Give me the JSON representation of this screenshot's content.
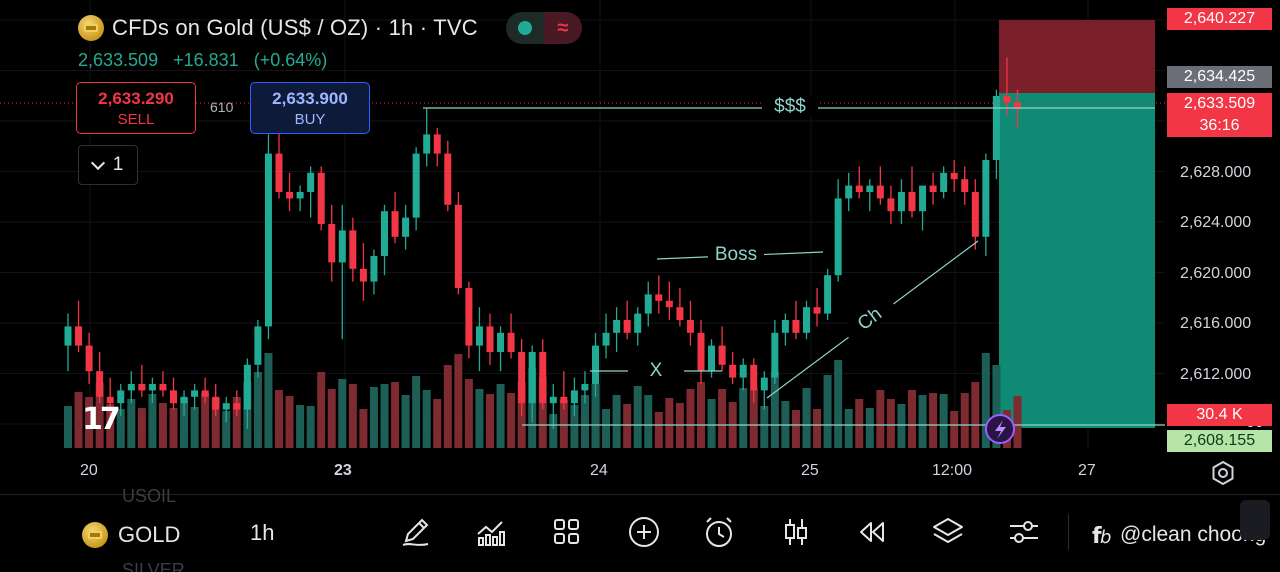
{
  "header": {
    "title": "CFDs on Gold (US$ / OZ) · 1h · TVC",
    "price": "2,633.509",
    "change": "+16.831",
    "change_pct": "(+0.64%)"
  },
  "trade": {
    "sell_price": "2,633.290",
    "sell_label": "SELL",
    "spread": "610",
    "buy_price": "2,633.900",
    "buy_label": "BUY"
  },
  "indicators_toggle": {
    "count": "1"
  },
  "annotations": {
    "liquidity": "$$$",
    "boss": "Boss",
    "x": "X",
    "ch": "Ch"
  },
  "price_axis": {
    "ticks": [
      "2,628.000",
      "2,624.000",
      "2,620.000",
      "2,616.000",
      "2,612.000"
    ],
    "tag_top": "2,640.227",
    "tag_grey": "2,634.425",
    "tag_last": "2,633.509",
    "tag_countdown": "36:16",
    "tag_volume": "30.4 K",
    "tag_bottom": "2,608.155",
    "partial_label": "00"
  },
  "time_axis": [
    "20",
    "23",
    "24",
    "25",
    "12:00",
    "27"
  ],
  "bottom": {
    "symbol": "GOLD",
    "timeframe": "1h",
    "ghost_above": "USOIL",
    "ghost_below": "SILVER",
    "watermark": "@clean choong"
  },
  "colors": {
    "up": "#22ab94",
    "down": "#f23645",
    "vol_up": "#1d5f56",
    "vol_down": "#7d2a30",
    "tp_zone": "#0f8a74",
    "sl_zone": "#7a1f29"
  },
  "chart_data": {
    "type": "candlestick",
    "ylim": [
      2607,
      2642
    ],
    "candles": [
      [
        2615.0,
        2617.5,
        2613.0,
        2616.5
      ],
      [
        2616.5,
        2618.5,
        2614.5,
        2615.0
      ],
      [
        2615.0,
        2616.0,
        2612.0,
        2613.0
      ],
      [
        2613.0,
        2614.5,
        2610.5,
        2611.0
      ],
      [
        2611.0,
        2612.5,
        2609.0,
        2610.5
      ],
      [
        2610.5,
        2612.0,
        2609.5,
        2611.5
      ],
      [
        2611.5,
        2613.0,
        2610.5,
        2612.0
      ],
      [
        2612.0,
        2613.5,
        2611.0,
        2611.5
      ],
      [
        2611.5,
        2612.5,
        2610.5,
        2612.0
      ],
      [
        2612.0,
        2613.0,
        2611.0,
        2611.5
      ],
      [
        2611.5,
        2612.5,
        2610.0,
        2610.5
      ],
      [
        2610.5,
        2611.5,
        2609.5,
        2611.0
      ],
      [
        2611.0,
        2612.0,
        2610.0,
        2611.5
      ],
      [
        2611.5,
        2612.5,
        2610.5,
        2611.0
      ],
      [
        2611.0,
        2612.0,
        2609.5,
        2610.0
      ],
      [
        2610.0,
        2611.0,
        2609.0,
        2610.5
      ],
      [
        2610.5,
        2611.5,
        2609.5,
        2610.0
      ],
      [
        2610.0,
        2614.0,
        2608.5,
        2613.5
      ],
      [
        2613.5,
        2617.0,
        2612.5,
        2616.5
      ],
      [
        2616.5,
        2631.5,
        2615.5,
        2630.0
      ],
      [
        2630.0,
        2632.0,
        2626.5,
        2627.0
      ],
      [
        2627.0,
        2628.5,
        2625.5,
        2626.5
      ],
      [
        2626.5,
        2627.5,
        2625.5,
        2627.0
      ],
      [
        2627.0,
        2629.0,
        2625.0,
        2628.5
      ],
      [
        2628.5,
        2629.0,
        2624.0,
        2624.5
      ],
      [
        2624.5,
        2626.0,
        2620.0,
        2621.5
      ],
      [
        2621.5,
        2626.0,
        2615.5,
        2624.0
      ],
      [
        2624.0,
        2625.0,
        2620.0,
        2621.0
      ],
      [
        2621.0,
        2623.0,
        2618.5,
        2620.0
      ],
      [
        2620.0,
        2622.5,
        2619.0,
        2622.0
      ],
      [
        2622.0,
        2626.0,
        2620.5,
        2625.5
      ],
      [
        2625.5,
        2627.0,
        2623.0,
        2623.5
      ],
      [
        2623.5,
        2626.0,
        2622.5,
        2625.0
      ],
      [
        2625.0,
        2630.5,
        2624.0,
        2630.0
      ],
      [
        2630.0,
        2633.5,
        2629.0,
        2631.5
      ],
      [
        2631.5,
        2632.0,
        2629.0,
        2630.0
      ],
      [
        2630.0,
        2631.0,
        2625.5,
        2626.0
      ],
      [
        2626.0,
        2627.0,
        2619.0,
        2619.5
      ],
      [
        2619.5,
        2620.0,
        2614.0,
        2615.0
      ],
      [
        2615.0,
        2618.0,
        2613.0,
        2616.5
      ],
      [
        2616.5,
        2617.5,
        2613.5,
        2614.5
      ],
      [
        2614.5,
        2616.5,
        2613.0,
        2616.0
      ],
      [
        2616.0,
        2617.5,
        2614.0,
        2614.5
      ],
      [
        2614.5,
        2615.5,
        2609.5,
        2610.5
      ],
      [
        2610.5,
        2615.0,
        2609.0,
        2614.5
      ],
      [
        2614.5,
        2615.5,
        2610.0,
        2610.5
      ],
      [
        2610.5,
        2612.0,
        2608.5,
        2611.0
      ],
      [
        2611.0,
        2613.0,
        2610.0,
        2610.5
      ],
      [
        2610.5,
        2612.5,
        2609.5,
        2611.5
      ],
      [
        2611.5,
        2613.0,
        2610.5,
        2612.0
      ],
      [
        2612.0,
        2616.0,
        2611.0,
        2615.0
      ],
      [
        2615.0,
        2617.5,
        2614.0,
        2616.0
      ],
      [
        2616.0,
        2618.0,
        2614.5,
        2617.0
      ],
      [
        2617.0,
        2618.5,
        2615.5,
        2616.0
      ],
      [
        2616.0,
        2618.0,
        2615.0,
        2617.5
      ],
      [
        2617.5,
        2620.0,
        2616.5,
        2619.0
      ],
      [
        2619.0,
        2620.5,
        2617.5,
        2618.5
      ],
      [
        2618.5,
        2620.0,
        2617.0,
        2618.0
      ],
      [
        2618.0,
        2619.5,
        2616.5,
        2617.0
      ],
      [
        2617.0,
        2618.5,
        2615.0,
        2616.0
      ],
      [
        2616.0,
        2617.0,
        2612.0,
        2613.0
      ],
      [
        2613.0,
        2615.5,
        2612.5,
        2615.0
      ],
      [
        2615.0,
        2616.5,
        2613.0,
        2613.5
      ],
      [
        2613.5,
        2614.5,
        2612.0,
        2612.5
      ],
      [
        2612.5,
        2614.0,
        2611.5,
        2613.5
      ],
      [
        2613.5,
        2614.0,
        2610.5,
        2611.5
      ],
      [
        2611.5,
        2613.0,
        2610.0,
        2612.5
      ],
      [
        2612.5,
        2617.0,
        2612.0,
        2616.0
      ],
      [
        2616.0,
        2617.5,
        2615.0,
        2617.0
      ],
      [
        2617.0,
        2618.5,
        2615.5,
        2616.0
      ],
      [
        2616.0,
        2618.5,
        2615.5,
        2618.0
      ],
      [
        2618.0,
        2619.5,
        2616.5,
        2617.5
      ],
      [
        2617.5,
        2621.0,
        2617.0,
        2620.5
      ],
      [
        2620.5,
        2628.0,
        2620.0,
        2626.5
      ],
      [
        2626.5,
        2628.5,
        2625.5,
        2627.5
      ],
      [
        2627.5,
        2629.0,
        2626.5,
        2627.0
      ],
      [
        2627.0,
        2628.0,
        2625.5,
        2627.5
      ],
      [
        2627.5,
        2629.0,
        2626.0,
        2626.5
      ],
      [
        2626.5,
        2627.5,
        2624.5,
        2625.5
      ],
      [
        2625.5,
        2628.0,
        2624.5,
        2627.0
      ],
      [
        2627.0,
        2629.0,
        2625.0,
        2625.5
      ],
      [
        2625.5,
        2627.5,
        2624.0,
        2627.5
      ],
      [
        2627.5,
        2628.5,
        2626.0,
        2627.0
      ],
      [
        2627.0,
        2629.0,
        2626.5,
        2628.5
      ],
      [
        2628.5,
        2629.5,
        2627.0,
        2628.0
      ],
      [
        2628.0,
        2629.0,
        2626.0,
        2627.0
      ],
      [
        2627.0,
        2628.0,
        2622.5,
        2623.5
      ],
      [
        2623.5,
        2630.0,
        2622.0,
        2629.5
      ],
      [
        2629.5,
        2635.0,
        2628.0,
        2634.5
      ],
      [
        2634.5,
        2637.5,
        2633.0,
        2634.0
      ],
      [
        2634.0,
        2635.0,
        2632.0,
        2633.5
      ]
    ]
  }
}
